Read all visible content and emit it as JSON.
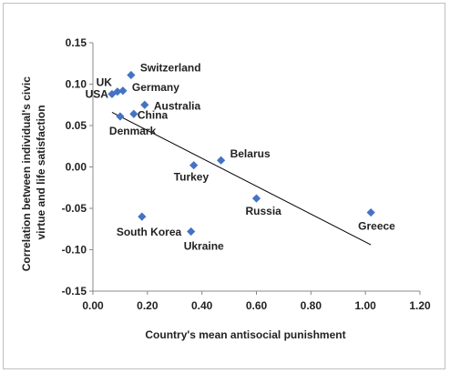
{
  "chart_data": {
    "type": "scatter",
    "title": "",
    "xlabel": "Country's mean antisocial punishment",
    "ylabel_lines": [
      "Correlation between individual's civic",
      "virtue and life satisfaction"
    ],
    "xlim": [
      0.0,
      1.2
    ],
    "ylim": [
      -0.15,
      0.15
    ],
    "x_ticks": [
      "0.00",
      "0.20",
      "0.40",
      "0.60",
      "0.80",
      "1.00",
      "1.20"
    ],
    "x_tick_values": [
      0.0,
      0.2,
      0.4,
      0.6,
      0.8,
      1.0,
      1.2
    ],
    "y_ticks": [
      "0.15",
      "0.10",
      "0.05",
      "0.00",
      "-0.05",
      "-0.10",
      "-0.15"
    ],
    "y_tick_values": [
      0.15,
      0.1,
      0.05,
      0.0,
      -0.05,
      -0.1,
      -0.15
    ],
    "grid": false,
    "legend": "none",
    "marker_color": "#4472c4",
    "points": [
      {
        "label": "Switzerland",
        "x": 0.14,
        "y": 0.111
      },
      {
        "label": "UK",
        "x": 0.09,
        "y": 0.091
      },
      {
        "label": "USA",
        "x": 0.07,
        "y": 0.088
      },
      {
        "label": "Germany",
        "x": 0.11,
        "y": 0.092
      },
      {
        "label": "Australia",
        "x": 0.19,
        "y": 0.075
      },
      {
        "label": "China",
        "x": 0.15,
        "y": 0.064
      },
      {
        "label": "Denmark",
        "x": 0.1,
        "y": 0.061
      },
      {
        "label": "Belarus",
        "x": 0.47,
        "y": 0.008
      },
      {
        "label": "Turkey",
        "x": 0.37,
        "y": 0.002
      },
      {
        "label": "Russia",
        "x": 0.6,
        "y": -0.038
      },
      {
        "label": "Greece",
        "x": 1.02,
        "y": -0.055
      },
      {
        "label": "South Korea",
        "x": 0.18,
        "y": -0.06
      },
      {
        "label": "Ukraine",
        "x": 0.36,
        "y": -0.078
      }
    ],
    "trendline": {
      "x": [
        0.07,
        1.02
      ],
      "y": [
        0.066,
        -0.094
      ]
    }
  }
}
